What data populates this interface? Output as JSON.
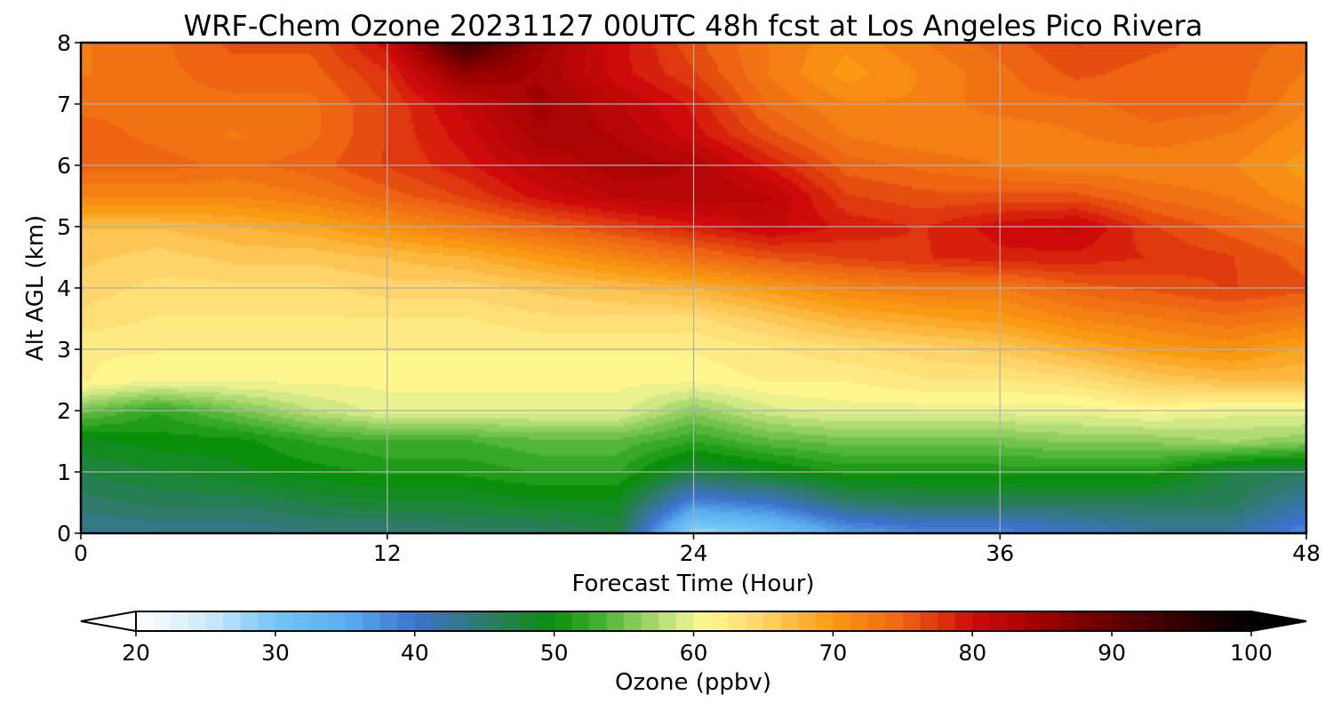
{
  "chart_data": {
    "type": "heatmap",
    "title": "WRF-Chem Ozone  20231127 00UTC 48h fcst at Los Angeles Pico Rivera",
    "xlabel": "Forecast Time (Hour)",
    "ylabel": "Alt AGL (km)",
    "xlim": [
      0,
      48
    ],
    "ylim": [
      0,
      8
    ],
    "xticks": [
      0,
      12,
      24,
      36,
      48
    ],
    "yticks": [
      0,
      1,
      2,
      3,
      4,
      5,
      6,
      7,
      8
    ],
    "grid": true,
    "x": [
      0,
      3,
      6,
      9,
      12,
      15,
      18,
      21,
      24,
      27,
      30,
      33,
      36,
      39,
      42,
      45,
      48
    ],
    "y": [
      0,
      0.5,
      1,
      1.5,
      2,
      2.5,
      3,
      3.5,
      4,
      4.5,
      5,
      5.5,
      6,
      6.5,
      7,
      7.5,
      8
    ],
    "z_units": "ppbv",
    "z": [
      [
        43,
        43,
        43,
        44,
        44,
        45,
        45,
        47,
        27,
        30,
        36,
        38,
        38,
        40,
        42,
        42,
        38
      ],
      [
        45,
        46,
        46,
        47,
        48,
        48,
        49,
        49,
        38,
        40,
        45,
        46,
        46,
        46,
        46,
        46,
        42
      ],
      [
        47,
        48,
        49,
        50,
        51,
        51,
        52,
        52,
        47,
        49,
        51,
        51,
        51,
        51,
        51,
        47,
        46
      ],
      [
        49,
        50,
        50,
        52,
        53,
        53,
        54,
        54,
        52,
        54,
        55,
        55,
        55,
        56,
        56,
        57,
        56
      ],
      [
        55,
        52,
        55,
        58,
        60,
        60,
        60,
        60,
        56,
        59,
        60,
        60,
        60,
        60,
        61,
        60,
        60
      ],
      [
        62,
        61,
        61,
        61,
        61,
        61,
        61,
        61,
        61,
        62,
        62,
        63,
        63,
        64,
        66,
        67,
        67
      ],
      [
        62,
        62,
        62,
        62,
        62,
        62,
        62,
        62,
        62,
        63,
        64,
        65,
        66,
        68,
        70,
        71,
        69
      ],
      [
        64,
        63,
        63,
        63,
        63,
        63,
        64,
        64,
        64,
        66,
        68,
        69,
        70,
        72,
        73,
        74,
        73
      ],
      [
        65,
        64,
        64,
        64,
        65,
        65,
        66,
        67,
        68,
        70,
        72,
        73,
        73,
        75,
        76,
        77,
        76
      ],
      [
        66,
        65,
        66,
        66,
        67,
        68,
        70,
        72,
        74,
        76,
        77,
        78,
        79,
        79,
        78,
        77,
        75
      ],
      [
        67,
        67,
        68,
        69,
        71,
        73,
        75,
        77,
        79,
        81,
        79,
        78,
        80,
        81,
        77,
        75,
        73
      ],
      [
        72,
        72,
        72,
        73,
        75,
        77,
        80,
        82,
        83,
        82,
        77,
        76,
        76,
        76,
        74,
        73,
        71
      ],
      [
        75,
        75,
        74,
        75,
        77,
        79,
        82,
        84,
        83,
        79,
        75,
        74,
        73,
        72,
        72,
        72,
        70
      ],
      [
        75,
        74,
        73,
        74,
        77,
        80,
        84,
        83,
        80,
        76,
        73,
        72,
        72,
        73,
        74,
        73,
        71
      ],
      [
        74,
        74,
        74,
        74,
        77,
        81,
        85,
        82,
        79,
        74,
        72,
        72,
        74,
        74,
        75,
        75,
        72
      ],
      [
        73,
        74,
        75,
        75,
        78,
        86,
        84,
        80,
        77,
        73,
        70,
        72,
        74,
        76,
        75,
        75,
        73
      ],
      [
        73,
        74,
        76,
        76,
        80,
        94,
        85,
        80,
        76,
        73,
        71,
        73,
        75,
        77,
        76,
        75,
        74
      ]
    ],
    "colorbar": {
      "label": "Ozone  (ppbv)",
      "min": 20,
      "max": 100,
      "ticks": [
        20,
        30,
        40,
        50,
        60,
        70,
        80,
        90,
        100
      ],
      "extend": "both",
      "placement": "bottom",
      "stops": [
        {
          "v": 20,
          "c": "#ffffff"
        },
        {
          "v": 25,
          "c": "#cfeaf8"
        },
        {
          "v": 30,
          "c": "#74c6f4"
        },
        {
          "v": 35,
          "c": "#5aaef0"
        },
        {
          "v": 40,
          "c": "#3d72cc"
        },
        {
          "v": 45,
          "c": "#2f7a6a"
        },
        {
          "v": 50,
          "c": "#0a8f0a"
        },
        {
          "v": 53,
          "c": "#3fae2f"
        },
        {
          "v": 56,
          "c": "#8ccd5c"
        },
        {
          "v": 59,
          "c": "#d6ea8a"
        },
        {
          "v": 61,
          "c": "#fff890"
        },
        {
          "v": 65,
          "c": "#fdd36a"
        },
        {
          "v": 70,
          "c": "#fa9a12"
        },
        {
          "v": 75,
          "c": "#ee6412"
        },
        {
          "v": 80,
          "c": "#cf0a0a"
        },
        {
          "v": 85,
          "c": "#a00000"
        },
        {
          "v": 90,
          "c": "#640000"
        },
        {
          "v": 95,
          "c": "#300000"
        },
        {
          "v": 100,
          "c": "#000000"
        }
      ]
    }
  }
}
